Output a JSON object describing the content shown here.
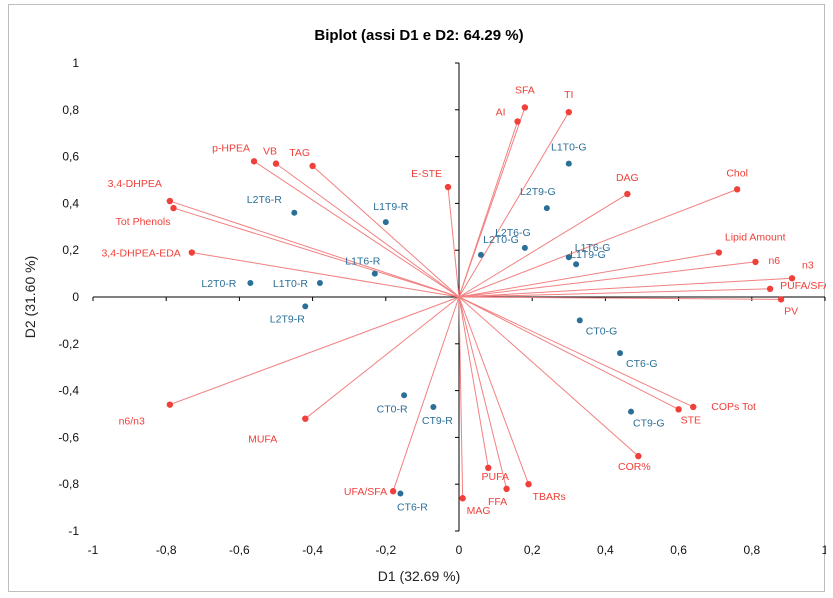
{
  "chart_data": {
    "type": "scatter",
    "title": "Biplot (assi D1 e D2: 64.29 %)",
    "xlabel": "D1 (32.69 %)",
    "ylabel": "D2 (31.60 %)",
    "xlim": [
      -1,
      1
    ],
    "ylim": [
      -1,
      1
    ],
    "x_ticks": [
      "-1",
      "-0,8",
      "-0,6",
      "-0,4",
      "-0,2",
      "0",
      "0,2",
      "0,4",
      "0,6",
      "0,8",
      "1"
    ],
    "y_ticks": [
      "1",
      "0,8",
      "0,6",
      "0,4",
      "0,2",
      "0",
      "-0,2",
      "-0,4",
      "-0,6",
      "-0,8",
      "-1"
    ],
    "grid": false,
    "colors": {
      "variables": "#f0403a",
      "observations": "#2a6f97",
      "line": "#f28080"
    },
    "variables": [
      {
        "label": "SFA",
        "x": 0.18,
        "y": 0.81
      },
      {
        "label": "AI",
        "x": 0.16,
        "y": 0.75
      },
      {
        "label": "TI",
        "x": 0.3,
        "y": 0.79
      },
      {
        "label": "DAG",
        "x": 0.46,
        "y": 0.44
      },
      {
        "label": "Chol",
        "x": 0.76,
        "y": 0.46
      },
      {
        "label": "Lipid Amount",
        "x": 0.71,
        "y": 0.19
      },
      {
        "label": "n6",
        "x": 0.81,
        "y": 0.15
      },
      {
        "label": "n3",
        "x": 0.91,
        "y": 0.08
      },
      {
        "label": "PUFA/SFA",
        "x": 0.85,
        "y": 0.035
      },
      {
        "label": "PV",
        "x": 0.88,
        "y": -0.01
      },
      {
        "label": "COPs Tot",
        "x": 0.64,
        "y": -0.47
      },
      {
        "label": "STE",
        "x": 0.6,
        "y": -0.48
      },
      {
        "label": "COR%",
        "x": 0.49,
        "y": -0.68
      },
      {
        "label": "TBARs",
        "x": 0.19,
        "y": -0.8
      },
      {
        "label": "FFA",
        "x": 0.13,
        "y": -0.82
      },
      {
        "label": "PUFA",
        "x": 0.08,
        "y": -0.73
      },
      {
        "label": "MAG",
        "x": 0.01,
        "y": -0.86
      },
      {
        "label": "UFA/SFA",
        "x": -0.18,
        "y": -0.83
      },
      {
        "label": "MUFA",
        "x": -0.42,
        "y": -0.52
      },
      {
        "label": "n6/n3",
        "x": -0.79,
        "y": -0.46
      },
      {
        "label": "3,4-DHPEA-EDA",
        "x": -0.73,
        "y": 0.19
      },
      {
        "label": "3,4-DHPEA",
        "x": -0.79,
        "y": 0.41
      },
      {
        "label": "Tot Phenols",
        "x": -0.78,
        "y": 0.38
      },
      {
        "label": "p-HPEA",
        "x": -0.56,
        "y": 0.58
      },
      {
        "label": "VB",
        "x": -0.5,
        "y": 0.57
      },
      {
        "label": "TAG",
        "x": -0.4,
        "y": 0.56
      },
      {
        "label": "E-STE",
        "x": -0.03,
        "y": 0.47
      }
    ],
    "observations": [
      {
        "label": "L1T0-G",
        "x": 0.3,
        "y": 0.57
      },
      {
        "label": "L2T9-G",
        "x": 0.24,
        "y": 0.38
      },
      {
        "label": "L2T6-G",
        "x": 0.18,
        "y": 0.21
      },
      {
        "label": "L2T0-G",
        "x": 0.06,
        "y": 0.18
      },
      {
        "label": "L1T6-G",
        "x": 0.3,
        "y": 0.17
      },
      {
        "label": "L1T9-G",
        "x": 0.32,
        "y": 0.14
      },
      {
        "label": "CT0-G",
        "x": 0.33,
        "y": -0.1
      },
      {
        "label": "CT6-G",
        "x": 0.44,
        "y": -0.24
      },
      {
        "label": "CT9-G",
        "x": 0.47,
        "y": -0.49
      },
      {
        "label": "L2T6-R",
        "x": -0.45,
        "y": 0.36
      },
      {
        "label": "L1T9-R",
        "x": -0.2,
        "y": 0.32
      },
      {
        "label": "L1T6-R",
        "x": -0.23,
        "y": 0.1
      },
      {
        "label": "L2T0-R",
        "x": -0.57,
        "y": 0.06
      },
      {
        "label": "L1T0-R",
        "x": -0.38,
        "y": 0.06
      },
      {
        "label": "L2T9-R",
        "x": -0.42,
        "y": -0.04
      },
      {
        "label": "CT0-R",
        "x": -0.15,
        "y": -0.42
      },
      {
        "label": "CT9-R",
        "x": -0.07,
        "y": -0.47
      },
      {
        "label": "CT6-R",
        "x": -0.16,
        "y": -0.84
      }
    ]
  }
}
